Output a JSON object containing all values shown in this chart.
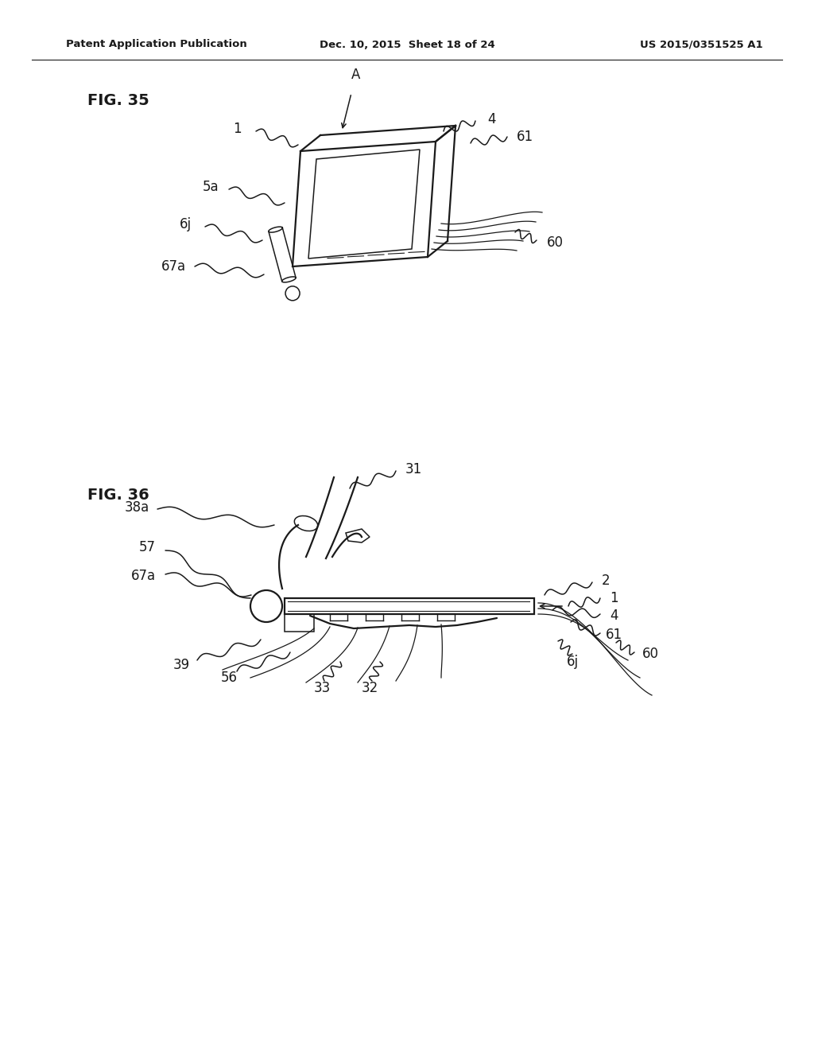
{
  "background_color": "#ffffff",
  "header_left": "Patent Application Publication",
  "header_middle": "Dec. 10, 2015  Sheet 18 of 24",
  "header_right": "US 2015/0351525 A1",
  "fig35_label": "FIG. 35",
  "fig36_label": "FIG. 36",
  "line_color": "#1a1a1a",
  "text_color": "#1a1a1a",
  "header_font_size": 9.5,
  "label_font_size": 14,
  "callout_font_size": 12
}
